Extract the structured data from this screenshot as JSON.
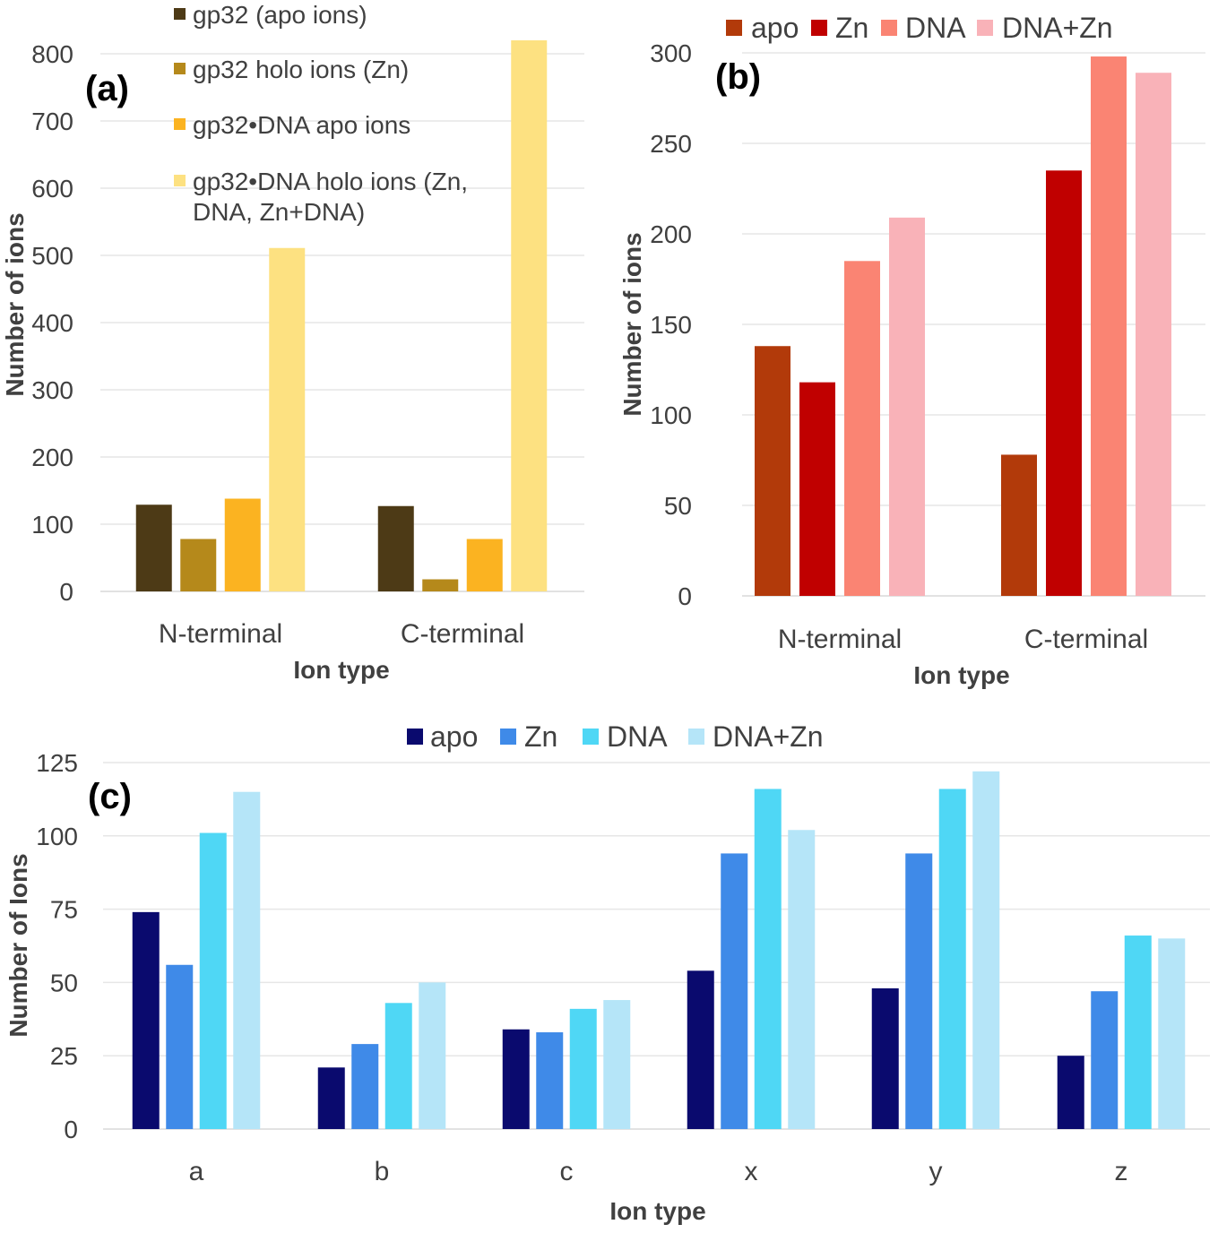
{
  "chart_data": [
    {
      "type": "bar",
      "panel_label": "(a)",
      "categories": [
        "N-terminal",
        "C-terminal"
      ],
      "series": [
        {
          "name": "gp32 (apo ions)",
          "values": [
            129,
            127
          ],
          "color": "#4d3a16"
        },
        {
          "name": "gp32 holo ions (Zn)",
          "values": [
            78,
            18
          ],
          "color": "#b5891b"
        },
        {
          "name": "gp32•DNA apo ions",
          "values": [
            138,
            78
          ],
          "color": "#fbb321"
        },
        {
          "name": "gp32•DNA holo ions (Zn, DNA, Zn+DNA)",
          "legend_lines": [
            "gp32•DNA holo ions (Zn,",
            "DNA, Zn+DNA)"
          ],
          "values": [
            511,
            820
          ],
          "color": "#fde181"
        }
      ],
      "xlabel": "Ion type",
      "ylabel": "Number of  ions",
      "ylim": [
        0,
        800
      ],
      "yticks": [
        0,
        100,
        200,
        300,
        400,
        500,
        600,
        700,
        800
      ],
      "grid": true,
      "legend_position": "top-left"
    },
    {
      "type": "bar",
      "panel_label": "(b)",
      "categories": [
        "N-terminal",
        "C-terminal"
      ],
      "series": [
        {
          "name": "apo",
          "values": [
            138,
            78
          ],
          "color": "#b23a0a"
        },
        {
          "name": "Zn",
          "values": [
            118,
            235
          ],
          "color": "#c00000"
        },
        {
          "name": "DNA",
          "values": [
            185,
            298
          ],
          "color": "#fa8473"
        },
        {
          "name": "DNA+Zn",
          "values": [
            209,
            289
          ],
          "color": "#f9b2b8"
        }
      ],
      "xlabel": "Ion type",
      "ylabel": "Number of  ions",
      "ylim": [
        0,
        300
      ],
      "yticks": [
        0,
        50,
        100,
        150,
        200,
        250,
        300
      ],
      "grid": true,
      "legend_position": "top"
    },
    {
      "type": "bar",
      "panel_label": "(c)",
      "categories": [
        "a",
        "b",
        "c",
        "x",
        "y",
        "z"
      ],
      "series": [
        {
          "name": "apo",
          "values": [
            74,
            21,
            34,
            54,
            48,
            25
          ],
          "color": "#0a0a6e"
        },
        {
          "name": "Zn",
          "values": [
            56,
            29,
            33,
            94,
            94,
            47
          ],
          "color": "#3f8ae8"
        },
        {
          "name": "DNA",
          "values": [
            101,
            43,
            41,
            116,
            116,
            66
          ],
          "color": "#4fd7f5"
        },
        {
          "name": "DNA+Zn",
          "values": [
            115,
            50,
            44,
            102,
            122,
            65
          ],
          "color": "#b5e5f8"
        }
      ],
      "xlabel": "Ion type",
      "ylabel": "Number of Ions",
      "ylim": [
        0,
        125
      ],
      "yticks": [
        0,
        25,
        50,
        75,
        100,
        125
      ],
      "grid": true,
      "legend_position": "top"
    }
  ]
}
